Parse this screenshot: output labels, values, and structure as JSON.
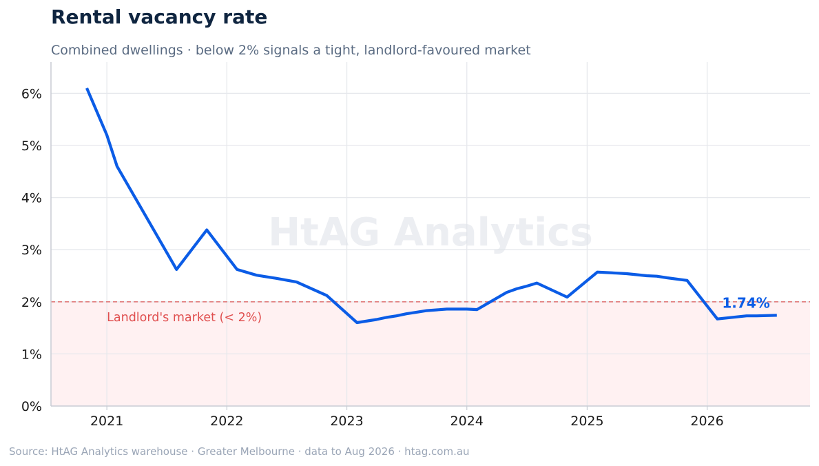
{
  "title": "Rental vacancy rate",
  "subtitle": "Combined dwellings · below 2% signals a tight, landlord-favoured market",
  "source": "Source: HtAG Analytics warehouse  ·  Greater Melbourne  ·  data to Aug 2026  ·  htag.com.au",
  "watermark": "HtAG Analytics",
  "colors": {
    "line": "#0b5ce6",
    "threshold": "#e07b7b",
    "band": "#fff1f2",
    "band_label": "#e05050",
    "title": "#0f2540"
  },
  "chart_data": {
    "type": "line",
    "title": "Rental vacancy rate",
    "subtitle": "Combined dwellings · below 2% signals a tight, landlord-favoured market",
    "xlabel": "",
    "ylabel": "",
    "x_ticks": [
      "2021",
      "2022",
      "2023",
      "2024",
      "2025",
      "2026"
    ],
    "y_ticks": [
      "0%",
      "1%",
      "2%",
      "3%",
      "4%",
      "5%",
      "6%"
    ],
    "xlim": [
      "2020-07-15",
      "2026-11-10"
    ],
    "ylim": [
      0,
      6.6
    ],
    "grid": true,
    "threshold": {
      "value": 2,
      "label": "Landlord's market (< 2%)"
    },
    "last_label": "1.74%",
    "series": [
      {
        "x": [
          "2020-11-01",
          "2021-01-01",
          "2021-02-01",
          "2021-08-01",
          "2021-11-01",
          "2022-02-01",
          "2022-04-01",
          "2022-06-01",
          "2022-08-01",
          "2022-11-01",
          "2023-02-01",
          "2023-04-01",
          "2023-05-01",
          "2023-06-01",
          "2023-07-01",
          "2023-08-01",
          "2023-09-01",
          "2023-11-01",
          "2024-01-01",
          "2024-02-01",
          "2024-05-01",
          "2024-06-01",
          "2024-07-01",
          "2024-08-01",
          "2024-11-01",
          "2025-02-01",
          "2025-04-01",
          "2025-05-01",
          "2025-06-01",
          "2025-07-01",
          "2025-08-01",
          "2025-09-01",
          "2025-11-01",
          "2026-02-01",
          "2026-05-01",
          "2026-06-01",
          "2026-08-01"
        ],
        "values": [
          6.1,
          5.2,
          4.6,
          2.62,
          3.38,
          2.62,
          2.51,
          2.45,
          2.38,
          2.12,
          1.6,
          1.66,
          1.7,
          1.73,
          1.77,
          1.8,
          1.83,
          1.86,
          1.86,
          1.85,
          2.18,
          2.25,
          2.3,
          2.36,
          2.09,
          2.57,
          2.55,
          2.54,
          2.52,
          2.5,
          2.49,
          2.46,
          2.41,
          1.67,
          1.73,
          1.73,
          1.74
        ]
      }
    ]
  }
}
